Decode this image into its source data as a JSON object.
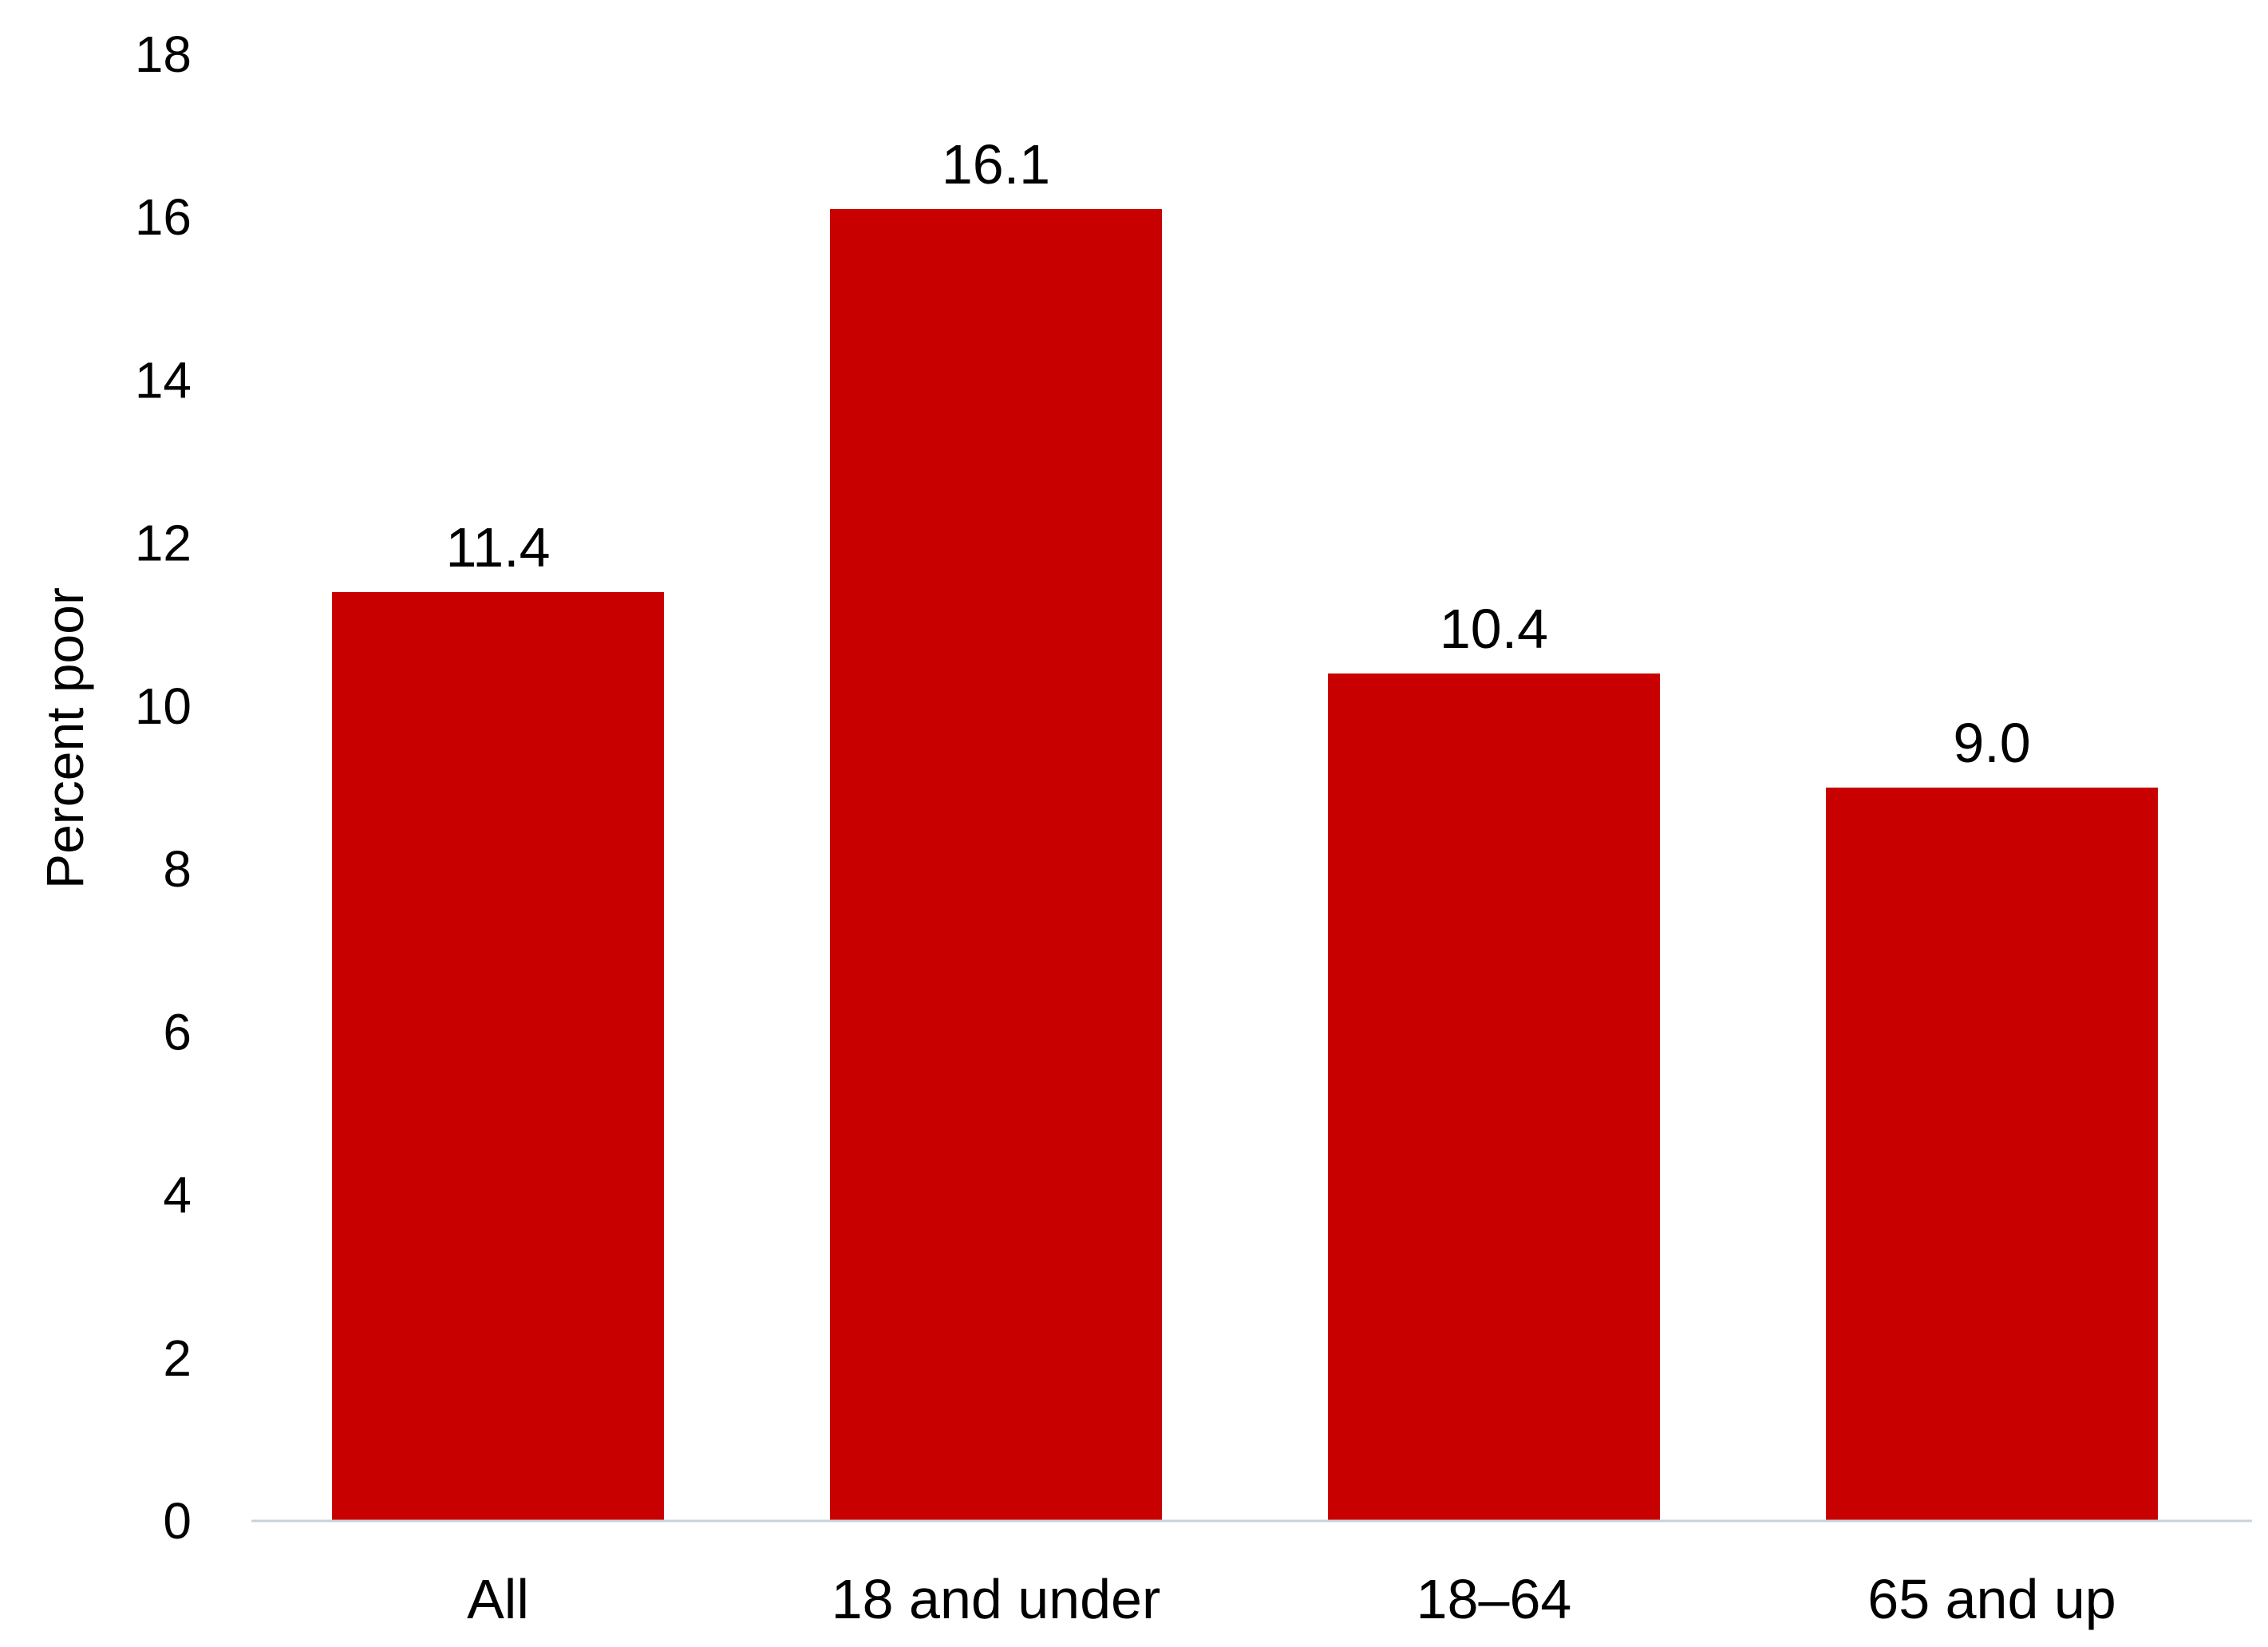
{
  "chart_data": {
    "type": "bar",
    "title": "",
    "xlabel": "",
    "ylabel": "Percent poor",
    "categories": [
      "All",
      "18 and under",
      "18–64",
      "65 and up"
    ],
    "values": [
      11.4,
      16.1,
      10.4,
      9.0
    ],
    "value_labels": [
      "11.4",
      "16.1",
      "10.4",
      "9.0"
    ],
    "ylim": [
      0,
      18
    ],
    "yticks": [
      0,
      2,
      4,
      6,
      8,
      10,
      12,
      14,
      16,
      18
    ],
    "grid": false,
    "legend": "none",
    "colors": {
      "bar": "#C80000",
      "axis": "#C9D3D9",
      "text": "#000000"
    }
  }
}
